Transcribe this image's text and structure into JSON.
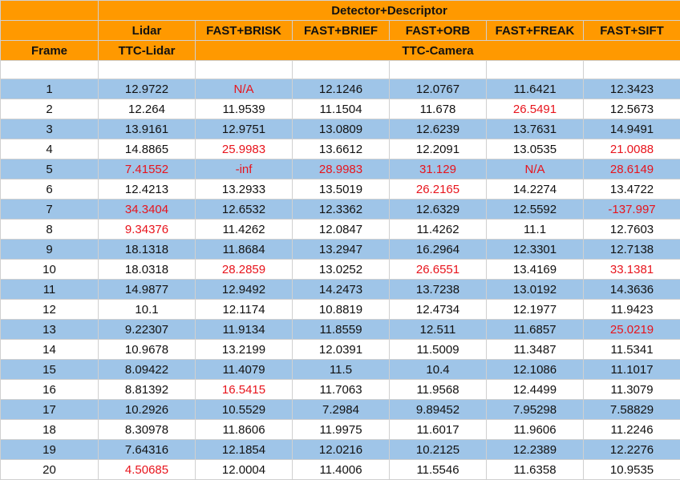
{
  "header": {
    "group_title": "Detector+Descriptor",
    "frame_label": "Frame",
    "lidar_label": "Lidar",
    "ttc_lidar_label": "TTC-Lidar",
    "ttc_camera_label": "TTC-Camera",
    "columns": [
      "FAST+BRISK",
      "FAST+BRIEF",
      "FAST+ORB",
      "FAST+FREAK",
      "FAST+SIFT"
    ]
  },
  "colors": {
    "header_bg": "#ff9900",
    "row_alt_bg": "#9fc5e8",
    "outlier_text": "#e8141c"
  },
  "rows": [
    {
      "frame": "1",
      "cells": [
        "12.9722",
        "N/A",
        "12.1246",
        "12.0767",
        "11.6421",
        "12.3423"
      ],
      "red": [
        false,
        true,
        false,
        false,
        false,
        false
      ]
    },
    {
      "frame": "2",
      "cells": [
        "12.264",
        "11.9539",
        "11.1504",
        "11.678",
        "26.5491",
        "12.5673"
      ],
      "red": [
        false,
        false,
        false,
        false,
        true,
        false
      ]
    },
    {
      "frame": "3",
      "cells": [
        "13.9161",
        "12.9751",
        "13.0809",
        "12.6239",
        "13.7631",
        "14.9491"
      ],
      "red": [
        false,
        false,
        false,
        false,
        false,
        false
      ]
    },
    {
      "frame": "4",
      "cells": [
        "14.8865",
        "25.9983",
        "13.6612",
        "12.2091",
        "13.0535",
        "21.0088"
      ],
      "red": [
        false,
        true,
        false,
        false,
        false,
        true
      ]
    },
    {
      "frame": "5",
      "cells": [
        "7.41552",
        "-inf",
        "28.9983",
        "31.129",
        "N/A",
        "28.6149"
      ],
      "red": [
        true,
        true,
        true,
        true,
        true,
        true
      ]
    },
    {
      "frame": "6",
      "cells": [
        "12.4213",
        "13.2933",
        "13.5019",
        "26.2165",
        "14.2274",
        "13.4722"
      ],
      "red": [
        false,
        false,
        false,
        true,
        false,
        false
      ]
    },
    {
      "frame": "7",
      "cells": [
        "34.3404",
        "12.6532",
        "12.3362",
        "12.6329",
        "12.5592",
        "-137.997"
      ],
      "red": [
        true,
        false,
        false,
        false,
        false,
        true
      ]
    },
    {
      "frame": "8",
      "cells": [
        "9.34376",
        "11.4262",
        "12.0847",
        "11.4262",
        "11.1",
        "12.7603"
      ],
      "red": [
        true,
        false,
        false,
        false,
        false,
        false
      ]
    },
    {
      "frame": "9",
      "cells": [
        "18.1318",
        "11.8684",
        "13.2947",
        "16.2964",
        "12.3301",
        "12.7138"
      ],
      "red": [
        false,
        false,
        false,
        false,
        false,
        false
      ]
    },
    {
      "frame": "10",
      "cells": [
        "18.0318",
        "28.2859",
        "13.0252",
        "26.6551",
        "13.4169",
        "33.1381"
      ],
      "red": [
        false,
        true,
        false,
        true,
        false,
        true
      ]
    },
    {
      "frame": "11",
      "cells": [
        "14.9877",
        "12.9492",
        "14.2473",
        "13.7238",
        "13.0192",
        "14.3636"
      ],
      "red": [
        false,
        false,
        false,
        false,
        false,
        false
      ]
    },
    {
      "frame": "12",
      "cells": [
        "10.1",
        "12.1174",
        "10.8819",
        "12.4734",
        "12.1977",
        "11.9423"
      ],
      "red": [
        false,
        false,
        false,
        false,
        false,
        false
      ]
    },
    {
      "frame": "13",
      "cells": [
        "9.22307",
        "11.9134",
        "11.8559",
        "12.511",
        "11.6857",
        "25.0219"
      ],
      "red": [
        false,
        false,
        false,
        false,
        false,
        true
      ]
    },
    {
      "frame": "14",
      "cells": [
        "10.9678",
        "13.2199",
        "12.0391",
        "11.5009",
        "11.3487",
        "11.5341"
      ],
      "red": [
        false,
        false,
        false,
        false,
        false,
        false
      ]
    },
    {
      "frame": "15",
      "cells": [
        "8.09422",
        "11.4079",
        "11.5",
        "10.4",
        "12.1086",
        "11.1017"
      ],
      "red": [
        false,
        false,
        false,
        false,
        false,
        false
      ]
    },
    {
      "frame": "16",
      "cells": [
        "8.81392",
        "16.5415",
        "11.7063",
        "11.9568",
        "12.4499",
        "11.3079"
      ],
      "red": [
        false,
        true,
        false,
        false,
        false,
        false
      ]
    },
    {
      "frame": "17",
      "cells": [
        "10.2926",
        "10.5529",
        "7.2984",
        "9.89452",
        "7.95298",
        "7.58829"
      ],
      "red": [
        false,
        false,
        false,
        false,
        false,
        false
      ]
    },
    {
      "frame": "18",
      "cells": [
        "8.30978",
        "11.8606",
        "11.9975",
        "11.6017",
        "11.9606",
        "11.2246"
      ],
      "red": [
        false,
        false,
        false,
        false,
        false,
        false
      ]
    },
    {
      "frame": "19",
      "cells": [
        "7.64316",
        "12.1854",
        "12.0216",
        "10.2125",
        "12.2389",
        "12.2276"
      ],
      "red": [
        false,
        false,
        false,
        false,
        false,
        false
      ]
    },
    {
      "frame": "20",
      "cells": [
        "4.50685",
        "12.0004",
        "11.4006",
        "11.5546",
        "11.6358",
        "10.9535"
      ],
      "red": [
        true,
        false,
        false,
        false,
        false,
        false
      ]
    }
  ]
}
